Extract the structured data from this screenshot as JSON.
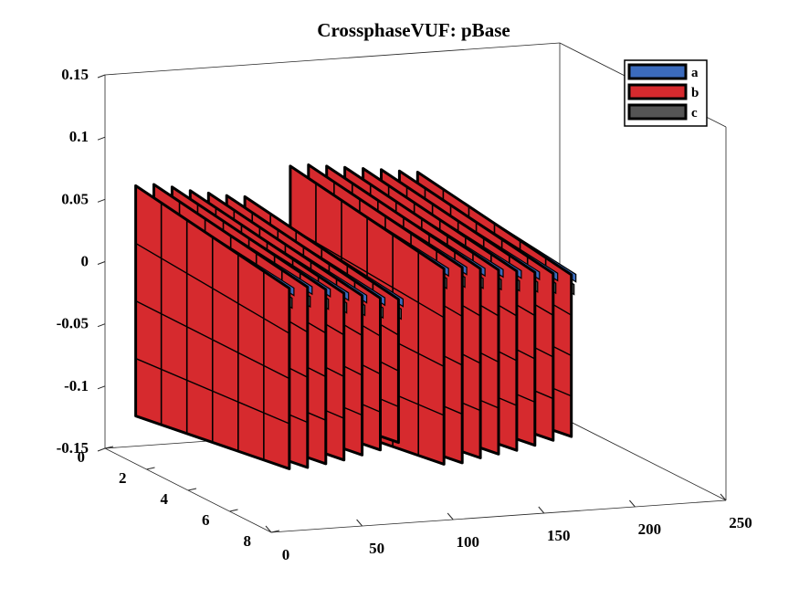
{
  "chart_data": {
    "type": "area",
    "title": "CrossphaseVUF: pBase",
    "xlabel": "",
    "ylabel": "",
    "zlabel": "",
    "xlim": [
      0,
      8
    ],
    "ylim": [
      0,
      250
    ],
    "zlim": [
      -0.15,
      0.15
    ],
    "x_ticks": [
      "0",
      "2",
      "4",
      "6",
      "8"
    ],
    "y_ticks": [
      "0",
      "50",
      "100",
      "150",
      "200",
      "250"
    ],
    "z_ticks": [
      "0.15",
      "0.1",
      "0.05",
      "0",
      "-0.05",
      "-0.1",
      "-0.15"
    ],
    "legend_position": "top-right",
    "series": [
      {
        "name": "a",
        "color": "#3b6bbd"
      },
      {
        "name": "b",
        "color": "#d62a2e"
      },
      {
        "name": "c",
        "color": "#555555"
      }
    ],
    "groups": [
      {
        "y": 10,
        "top": 0.065,
        "bottom": -0.12
      },
      {
        "y": 20,
        "top": 0.065,
        "bottom": -0.12
      },
      {
        "y": 30,
        "top": 0.062,
        "bottom": -0.118
      },
      {
        "y": 40,
        "top": 0.058,
        "bottom": -0.116
      },
      {
        "y": 50,
        "top": 0.055,
        "bottom": -0.113
      },
      {
        "y": 60,
        "top": 0.052,
        "bottom": -0.11
      },
      {
        "y": 70,
        "top": 0.05,
        "bottom": -0.105
      },
      {
        "y": 95,
        "top": 0.072,
        "bottom": -0.125
      },
      {
        "y": 105,
        "top": 0.072,
        "bottom": -0.125
      },
      {
        "y": 115,
        "top": 0.07,
        "bottom": -0.122
      },
      {
        "y": 125,
        "top": 0.068,
        "bottom": -0.12
      },
      {
        "y": 135,
        "top": 0.066,
        "bottom": -0.118
      },
      {
        "y": 145,
        "top": 0.064,
        "bottom": -0.115
      },
      {
        "y": 155,
        "top": 0.062,
        "bottom": -0.112
      },
      {
        "y": 165,
        "top": 0.06,
        "bottom": -0.11
      }
    ]
  }
}
